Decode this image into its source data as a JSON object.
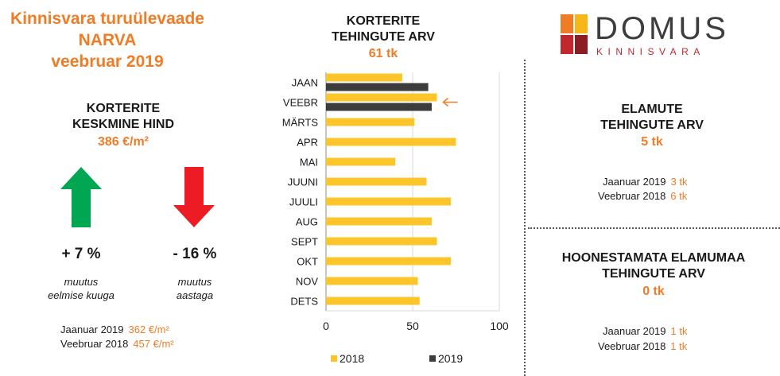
{
  "title": {
    "line1": "Kinnisvara turuülevaade",
    "line2": "NARVA",
    "line3": "veebruar 2019"
  },
  "avg_price": {
    "heading_line1": "KORTERITE",
    "heading_line2": "KESKMINE HIND",
    "value": "386 €/m²"
  },
  "changes": {
    "monthly": {
      "value": "+ 7 %",
      "note_line1": "muutus",
      "note_line2": "eelmise kuuga",
      "direction": "up",
      "color": "#00a651"
    },
    "yearly": {
      "value": "- 16 %",
      "note_line1": "muutus",
      "note_line2": "aastaga",
      "direction": "down",
      "color": "#ed1c24"
    }
  },
  "price_history": [
    {
      "label": "Jaanuar 2019",
      "value": "362 €/m²"
    },
    {
      "label": "Veebruar 2018",
      "value": "457 €/m²"
    }
  ],
  "apartments": {
    "heading_line1": "KORTERITE",
    "heading_line2": "TEHINGUTE ARV",
    "value": "61 tk",
    "marker_icon": "left-arrow-icon"
  },
  "chart_data": {
    "type": "bar",
    "orientation": "horizontal",
    "categories": [
      "JAAN",
      "VEEBR",
      "MÄRTS",
      "APR",
      "MAI",
      "JUUNI",
      "JUULI",
      "AUG",
      "SEPT",
      "OKT",
      "NOV",
      "DETS"
    ],
    "series": [
      {
        "name": "2018",
        "color": "#fcc62b",
        "values": [
          44,
          64,
          51,
          75,
          40,
          58,
          72,
          61,
          64,
          72,
          53,
          54
        ]
      },
      {
        "name": "2019",
        "color": "#3c3c3c",
        "values": [
          59,
          61,
          null,
          null,
          null,
          null,
          null,
          null,
          null,
          null,
          null,
          null
        ]
      }
    ],
    "xlim": [
      0,
      100
    ],
    "xticks": [
      0,
      50,
      100
    ],
    "grid": true,
    "legend": "bottom",
    "highlight_category": "VEEBR"
  },
  "houses": {
    "heading_line1": "ELAMUTE",
    "heading_line2": "TEHINGUTE ARV",
    "value": "5 tk",
    "history": [
      {
        "label": "Jaanuar 2019",
        "value": "3 tk"
      },
      {
        "label": "Veebruar 2018",
        "value": "6 tk"
      }
    ]
  },
  "land": {
    "heading_line1": "HOONESTAMATA ELAMUMAA",
    "heading_line2": "TEHINGUTE ARV",
    "value": "0 tk",
    "history": [
      {
        "label": "Jaanuar 2019",
        "value": "1 tk"
      },
      {
        "label": "Veebruar 2018",
        "value": "1 tk"
      }
    ]
  },
  "logo": {
    "name": "DOMUS",
    "sub": "KINNISVARA",
    "colors": [
      "#f07c26",
      "#f7b719",
      "#c1272d",
      "#8a1e22"
    ]
  }
}
